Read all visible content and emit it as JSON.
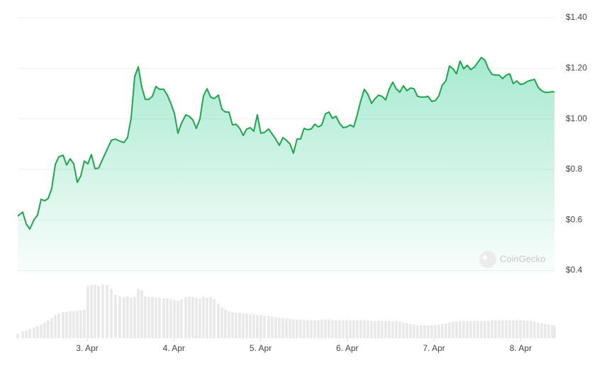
{
  "chart_data": {
    "type": "area",
    "x": [
      2.199,
      2.256,
      2.297,
      2.338,
      2.387,
      2.428,
      2.469,
      2.509,
      2.55,
      2.591,
      2.632,
      2.673,
      2.722,
      2.763,
      2.804,
      2.845,
      2.886,
      2.926,
      2.967,
      3.008,
      3.049,
      3.09,
      3.131,
      3.18,
      3.229,
      3.278,
      3.327,
      3.376,
      3.425,
      3.466,
      3.507,
      3.548,
      3.589,
      3.63,
      3.67,
      3.711,
      3.752,
      3.793,
      3.834,
      3.883,
      3.924,
      3.965,
      4.006,
      4.047,
      4.087,
      4.137,
      4.177,
      4.218,
      4.259,
      4.3,
      4.341,
      4.382,
      4.423,
      4.464,
      4.513,
      4.554,
      4.594,
      4.635,
      4.676,
      4.717,
      4.759,
      4.799,
      4.84,
      4.881,
      4.922,
      4.962,
      5.003,
      5.044,
      5.093,
      5.134,
      5.175,
      5.216,
      5.257,
      5.298,
      5.339,
      5.379,
      5.42,
      5.461,
      5.502,
      5.543,
      5.584,
      5.625,
      5.666,
      5.706,
      5.747,
      5.788,
      5.829,
      5.87,
      5.911,
      5.952,
      5.993,
      6.034,
      6.074,
      6.115,
      6.156,
      6.197,
      6.238,
      6.279,
      6.32,
      6.361,
      6.401,
      6.442,
      6.483,
      6.524,
      6.565,
      6.606,
      6.647,
      6.688,
      6.729,
      6.769,
      6.81,
      6.851,
      6.892,
      6.933,
      6.974,
      7.015,
      7.056,
      7.096,
      7.137,
      7.178,
      7.219,
      7.26,
      7.301,
      7.342,
      7.383,
      7.423,
      7.464,
      7.505,
      7.546,
      7.587,
      7.628,
      7.669,
      7.71,
      7.751,
      7.791,
      7.832,
      7.873,
      7.914,
      7.955,
      7.996,
      8.037,
      8.078,
      8.119,
      8.159,
      8.2,
      8.241,
      8.282,
      8.323,
      8.364,
      8.389
    ],
    "series": [
      {
        "color": "#1fa64c",
        "values": [
          0.615,
          0.631,
          0.584,
          0.564,
          0.601,
          0.62,
          0.682,
          0.676,
          0.685,
          0.724,
          0.819,
          0.85,
          0.856,
          0.817,
          0.842,
          0.822,
          0.749,
          0.774,
          0.833,
          0.822,
          0.859,
          0.803,
          0.805,
          0.842,
          0.878,
          0.915,
          0.92,
          0.912,
          0.906,
          0.926,
          1.004,
          1.167,
          1.206,
          1.125,
          1.077,
          1.077,
          1.089,
          1.128,
          1.117,
          1.117,
          1.094,
          1.061,
          1.021,
          0.943,
          0.982,
          1.016,
          1.01,
          0.996,
          0.962,
          0.999,
          1.091,
          1.119,
          1.086,
          1.08,
          1.094,
          1.038,
          1.027,
          1.027,
          0.976,
          0.979,
          0.962,
          0.934,
          0.96,
          0.965,
          0.951,
          1.016,
          0.943,
          0.946,
          0.96,
          0.94,
          0.92,
          0.895,
          0.926,
          0.915,
          0.901,
          0.864,
          0.92,
          0.92,
          0.962,
          0.957,
          0.96,
          0.979,
          0.968,
          0.976,
          1.019,
          1.027,
          1.002,
          1.01,
          0.982,
          0.965,
          0.968,
          0.976,
          0.968,
          1.016,
          1.072,
          1.117,
          1.097,
          1.061,
          1.08,
          1.094,
          1.089,
          1.075,
          1.117,
          1.145,
          1.119,
          1.105,
          1.131,
          1.111,
          1.122,
          1.119,
          1.089,
          1.086,
          1.086,
          1.089,
          1.069,
          1.072,
          1.091,
          1.134,
          1.15,
          1.209,
          1.198,
          1.178,
          1.229,
          1.198,
          1.212,
          1.195,
          1.204,
          1.223,
          1.243,
          1.232,
          1.198,
          1.176,
          1.173,
          1.173,
          1.159,
          1.173,
          1.178,
          1.139,
          1.15,
          1.136,
          1.139,
          1.148,
          1.153,
          1.156,
          1.125,
          1.111,
          1.105,
          1.105,
          1.108,
          1.105
        ]
      }
    ],
    "volume": {
      "color": "#e8e8e8",
      "values": [
        6,
        9,
        10,
        12,
        14,
        16,
        18,
        21,
        24,
        27,
        31,
        33,
        35,
        35,
        36,
        36,
        37,
        37,
        38,
        70,
        71,
        71,
        70,
        72,
        71,
        66,
        58,
        56,
        55,
        56,
        54,
        55,
        66,
        64,
        56,
        55,
        55,
        54,
        54,
        53,
        53,
        52,
        51,
        50,
        52,
        55,
        56,
        55,
        54,
        53,
        55,
        54,
        55,
        52,
        46,
        41,
        38,
        36,
        35,
        34,
        34,
        33,
        33,
        32,
        32,
        31,
        31,
        30,
        30,
        29,
        28,
        27,
        27,
        26,
        26,
        25,
        25,
        25,
        24,
        24,
        24,
        24,
        24,
        25,
        25,
        25,
        24,
        24,
        24,
        24,
        24,
        24,
        24,
        24,
        24,
        24,
        24,
        23,
        23,
        23,
        23,
        23,
        23,
        23,
        23,
        22,
        21,
        20,
        19,
        18,
        17,
        17,
        17,
        17,
        17,
        17,
        18,
        19,
        20,
        21,
        22,
        22,
        23,
        23,
        23,
        23,
        23,
        23,
        23,
        23,
        23,
        24,
        24,
        24,
        24,
        24,
        24,
        24,
        24,
        24,
        24,
        23,
        23,
        22,
        21,
        20,
        19,
        18,
        17,
        17
      ]
    },
    "xlim": [
      2.199,
      8.389
    ],
    "xticks": [
      {
        "value": 3,
        "label": "3. Apr"
      },
      {
        "value": 4,
        "label": "4. Apr"
      },
      {
        "value": 5,
        "label": "5. Apr"
      },
      {
        "value": 6,
        "label": "6. Apr"
      },
      {
        "value": 7,
        "label": "7. Apr"
      },
      {
        "value": 8,
        "label": "8. Apr"
      }
    ],
    "ylim": [
      0.4,
      1.4
    ],
    "yticks": [
      {
        "value": 0.4,
        "label": "$0.4"
      },
      {
        "value": 0.6,
        "label": "$0.6"
      },
      {
        "value": 0.8,
        "label": "$0.8"
      },
      {
        "value": 1.0,
        "label": "$1.00"
      },
      {
        "value": 1.2,
        "label": "$1.20"
      },
      {
        "value": 1.4,
        "label": "$1.40"
      }
    ],
    "grid": true,
    "watermark": "CoinGecko"
  }
}
